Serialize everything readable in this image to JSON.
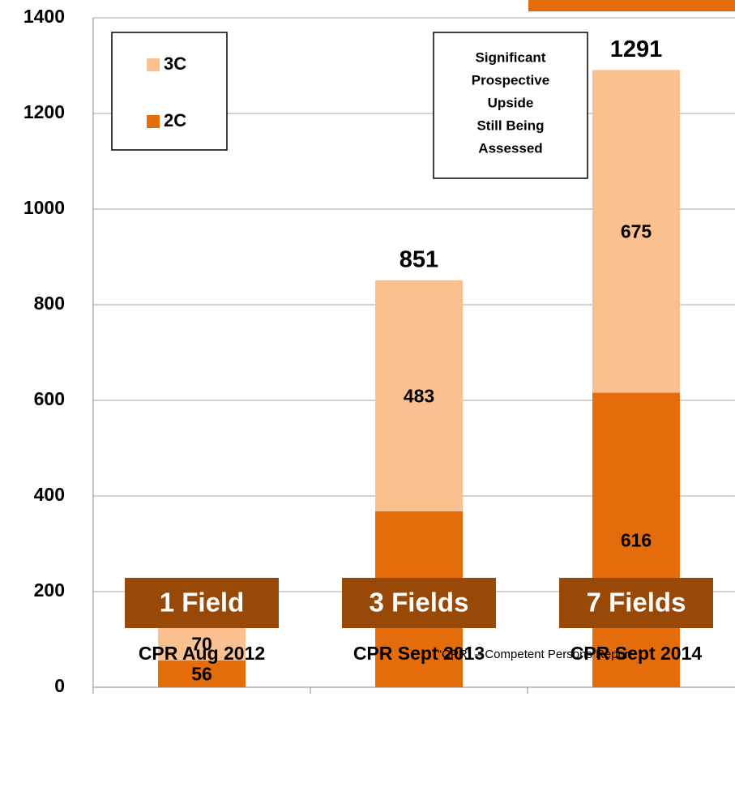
{
  "chart_data": {
    "type": "stacked-bar",
    "categories": [
      "CPR Aug 2012",
      "CPR Sept 2013",
      "CPR Sept 2014"
    ],
    "series": [
      {
        "name": "2C",
        "color": "#e46c0a",
        "values": [
          56,
          368,
          616
        ]
      },
      {
        "name": "3C",
        "color": "#fac090",
        "values": [
          70,
          483,
          675
        ]
      }
    ],
    "totals": [
      126,
      851,
      1291
    ],
    "ylim": [
      0,
      1400
    ],
    "yticks": [
      0,
      200,
      400,
      600,
      800,
      1000,
      1200,
      1400
    ],
    "grid": true,
    "legend": "top-left",
    "annotation": [
      "Significant",
      "Prospective",
      "Upside",
      "Still Being",
      "Assessed"
    ],
    "footnote": "“CPR” – Competent Persons Report",
    "fields": [
      "1 Field",
      "3 Fields",
      "7 Fields"
    ],
    "field_color": "#984807"
  }
}
